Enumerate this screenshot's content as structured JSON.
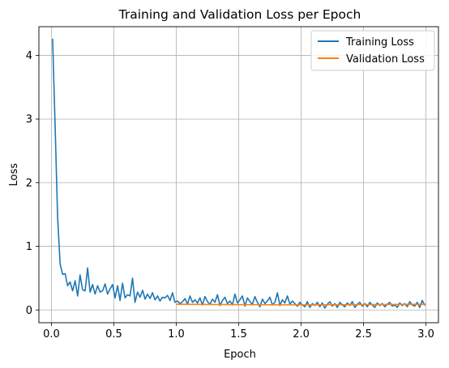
{
  "chart_data": {
    "type": "line",
    "title": "Training and Validation Loss per Epoch",
    "xlabel": "Epoch",
    "ylabel": "Loss",
    "xlim": [
      -0.1,
      3.1
    ],
    "ylim": [
      -0.2,
      4.45
    ],
    "xticks": [
      0.0,
      0.5,
      1.0,
      1.5,
      2.0,
      2.5,
      3.0
    ],
    "xtick_labels": [
      "0.0",
      "0.5",
      "1.0",
      "1.5",
      "2.0",
      "2.5",
      "3.0"
    ],
    "yticks": [
      0,
      1,
      2,
      3,
      4
    ],
    "ytick_labels": [
      "0",
      "1",
      "2",
      "3",
      "4"
    ],
    "grid": true,
    "legend_position": "top-right",
    "series": [
      {
        "name": "Training Loss",
        "color": "#1f77b4",
        "x": [
          0.01,
          0.03,
          0.05,
          0.07,
          0.09,
          0.11,
          0.13,
          0.15,
          0.17,
          0.19,
          0.21,
          0.23,
          0.25,
          0.27,
          0.29,
          0.31,
          0.33,
          0.35,
          0.37,
          0.39,
          0.41,
          0.43,
          0.45,
          0.47,
          0.49,
          0.51,
          0.53,
          0.55,
          0.57,
          0.59,
          0.61,
          0.63,
          0.65,
          0.67,
          0.69,
          0.71,
          0.73,
          0.75,
          0.77,
          0.79,
          0.81,
          0.83,
          0.85,
          0.87,
          0.89,
          0.91,
          0.93,
          0.95,
          0.97,
          0.99,
          1.01,
          1.03,
          1.05,
          1.07,
          1.09,
          1.11,
          1.13,
          1.15,
          1.17,
          1.19,
          1.21,
          1.23,
          1.25,
          1.27,
          1.29,
          1.31,
          1.33,
          1.35,
          1.37,
          1.39,
          1.41,
          1.43,
          1.45,
          1.47,
          1.49,
          1.51,
          1.53,
          1.55,
          1.57,
          1.59,
          1.61,
          1.63,
          1.65,
          1.67,
          1.69,
          1.71,
          1.73,
          1.75,
          1.77,
          1.79,
          1.81,
          1.83,
          1.85,
          1.87,
          1.89,
          1.91,
          1.93,
          1.95,
          1.97,
          1.99,
          2.01,
          2.03,
          2.05,
          2.07,
          2.09,
          2.11,
          2.13,
          2.15,
          2.17,
          2.19,
          2.21,
          2.23,
          2.25,
          2.27,
          2.29,
          2.31,
          2.33,
          2.35,
          2.37,
          2.39,
          2.41,
          2.43,
          2.45,
          2.47,
          2.49,
          2.51,
          2.53,
          2.55,
          2.57,
          2.59,
          2.61,
          2.63,
          2.65,
          2.67,
          2.69,
          2.71,
          2.73,
          2.75,
          2.77,
          2.79,
          2.81,
          2.83,
          2.85,
          2.87,
          2.89,
          2.91,
          2.93,
          2.95,
          2.97,
          2.99
        ],
        "values": [
          4.26,
          2.9,
          1.45,
          0.72,
          0.56,
          0.57,
          0.38,
          0.44,
          0.3,
          0.46,
          0.22,
          0.55,
          0.32,
          0.3,
          0.66,
          0.28,
          0.4,
          0.25,
          0.38,
          0.28,
          0.3,
          0.41,
          0.25,
          0.33,
          0.4,
          0.19,
          0.38,
          0.15,
          0.42,
          0.19,
          0.24,
          0.22,
          0.5,
          0.12,
          0.28,
          0.2,
          0.31,
          0.17,
          0.25,
          0.18,
          0.27,
          0.16,
          0.22,
          0.14,
          0.2,
          0.19,
          0.23,
          0.15,
          0.27,
          0.12,
          0.14,
          0.1,
          0.13,
          0.18,
          0.09,
          0.22,
          0.12,
          0.16,
          0.11,
          0.19,
          0.08,
          0.21,
          0.13,
          0.09,
          0.17,
          0.12,
          0.24,
          0.07,
          0.15,
          0.2,
          0.1,
          0.14,
          0.08,
          0.25,
          0.11,
          0.16,
          0.22,
          0.06,
          0.19,
          0.13,
          0.09,
          0.21,
          0.12,
          0.05,
          0.17,
          0.1,
          0.14,
          0.2,
          0.08,
          0.12,
          0.27,
          0.07,
          0.16,
          0.11,
          0.22,
          0.09,
          0.14,
          0.1,
          0.06,
          0.12,
          0.08,
          0.05,
          0.13,
          0.04,
          0.1,
          0.07,
          0.12,
          0.05,
          0.11,
          0.03,
          0.09,
          0.13,
          0.06,
          0.1,
          0.04,
          0.12,
          0.08,
          0.05,
          0.11,
          0.07,
          0.13,
          0.04,
          0.09,
          0.12,
          0.06,
          0.1,
          0.05,
          0.12,
          0.08,
          0.04,
          0.11,
          0.07,
          0.1,
          0.05,
          0.09,
          0.12,
          0.06,
          0.08,
          0.04,
          0.11,
          0.07,
          0.1,
          0.05,
          0.13,
          0.08,
          0.06,
          0.12,
          0.04,
          0.15,
          0.07
        ]
      },
      {
        "name": "Validation Loss",
        "color": "#ff7f0e",
        "x": [
          1.0,
          2.0,
          3.0
        ],
        "values": [
          0.09,
          0.08,
          0.09
        ]
      }
    ]
  }
}
